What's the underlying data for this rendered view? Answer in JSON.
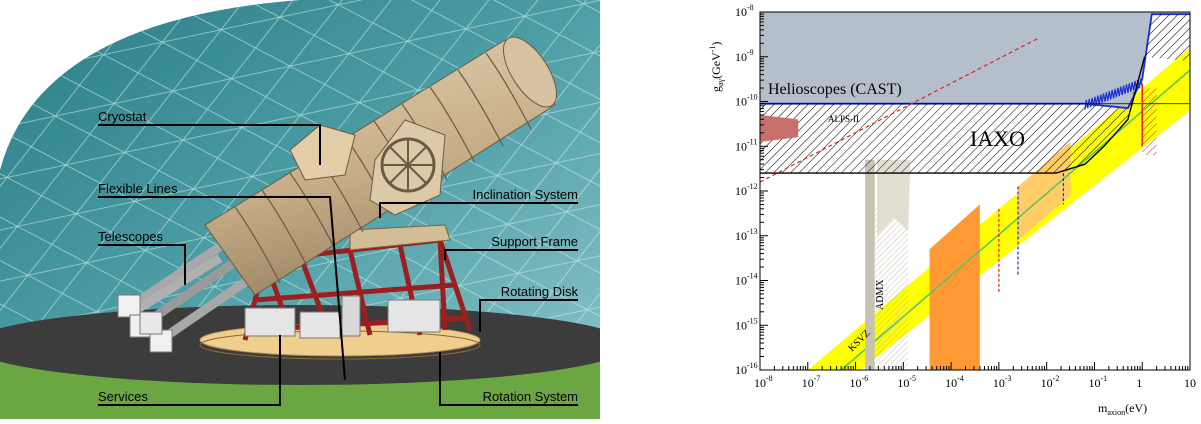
{
  "diagram": {
    "callouts": [
      {
        "id": "cryostat",
        "label": "Cryostat"
      },
      {
        "id": "flexible-lines",
        "label": "Flexible Lines"
      },
      {
        "id": "telescopes",
        "label": "Telescopes"
      },
      {
        "id": "services",
        "label": "Services"
      },
      {
        "id": "inclination-system",
        "label": "Inclination System"
      },
      {
        "id": "support-frame",
        "label": "Support Frame"
      },
      {
        "id": "rotating-disk",
        "label": "Rotating Disk"
      },
      {
        "id": "rotation-system",
        "label": "Rotation System"
      }
    ]
  },
  "chart_data": {
    "type": "area",
    "xlabel": "m",
    "xlabel_sub": "axion",
    "xlabel_unit": "(eV)",
    "ylabel": "g",
    "ylabel_sub": "aγ",
    "ylabel_unit": "(GeV",
    "ylabel_unit_sup": "-1",
    "ylabel_unit_close": ")",
    "x_log_range": [
      -8,
      1
    ],
    "y_log_range": [
      -16,
      -8
    ],
    "x_ticks": [
      {
        "label": "10",
        "exp": "-8",
        "logv": -8
      },
      {
        "label": "10",
        "exp": "-7",
        "logv": -7
      },
      {
        "label": "10",
        "exp": "-6",
        "logv": -6
      },
      {
        "label": "10",
        "exp": "-5",
        "logv": -5
      },
      {
        "label": "10",
        "exp": "-4",
        "logv": -4
      },
      {
        "label": "10",
        "exp": "-3",
        "logv": -3
      },
      {
        "label": "10",
        "exp": "-2",
        "logv": -2
      },
      {
        "label": "10",
        "exp": "-1",
        "logv": -1
      },
      {
        "label": "1",
        "exp": "",
        "logv": 0
      },
      {
        "label": "10",
        "exp": "",
        "logv": 1
      }
    ],
    "y_ticks": [
      {
        "label": "10",
        "exp": "-8",
        "logv": -8
      },
      {
        "label": "10",
        "exp": "-9",
        "logv": -9
      },
      {
        "label": "10",
        "exp": "-10",
        "logv": -10
      },
      {
        "label": "10",
        "exp": "-11",
        "logv": -11
      },
      {
        "label": "10",
        "exp": "-12",
        "logv": -12
      },
      {
        "label": "10",
        "exp": "-13",
        "logv": -13
      },
      {
        "label": "10",
        "exp": "-14",
        "logv": -14
      },
      {
        "label": "10",
        "exp": "-15",
        "logv": -15
      },
      {
        "label": "10",
        "exp": "-16",
        "logv": -16
      }
    ],
    "annotations": [
      {
        "id": "helioscopes-cast",
        "text": "Helioscopes (CAST)"
      },
      {
        "id": "iaxo",
        "text": "IAXO"
      },
      {
        "id": "alps-ii",
        "text": "ALPS-II"
      },
      {
        "id": "admx",
        "text": "ADMX"
      },
      {
        "id": "ksvz",
        "text": "KSVZ"
      }
    ],
    "regions": {
      "cast": {
        "color": "#b4bfcb",
        "line_color": "#1a2fd6",
        "bound_logx": [
          -8,
          -1.2,
          -0.3,
          0,
          0.2,
          1
        ],
        "bound_logy": [
          -10.05,
          -10.05,
          -10.15,
          -9.5,
          -8.05,
          -8.05
        ]
      },
      "iaxo": {
        "bound_logx": [
          -8,
          -1.8,
          -1.2,
          -0.8,
          -0.3,
          0.05
        ],
        "bound_logy": [
          -11.6,
          -11.6,
          -11.4,
          -11.0,
          -10.4,
          -9.0
        ]
      },
      "qcd_band": {
        "color": "#ffff00"
      },
      "orange_band": {
        "color": "#ff9933"
      },
      "light_orange_band": {
        "color": "#ffcc66"
      },
      "alps": {
        "color": "#c9706e"
      },
      "admx": {
        "color": "#c8c2b3"
      },
      "ksvz_line": {
        "color": "#5cc26a"
      },
      "red_dashed": {
        "color": "#e02020"
      },
      "blue_dashed": {
        "color": "#1a2fd6"
      }
    }
  }
}
